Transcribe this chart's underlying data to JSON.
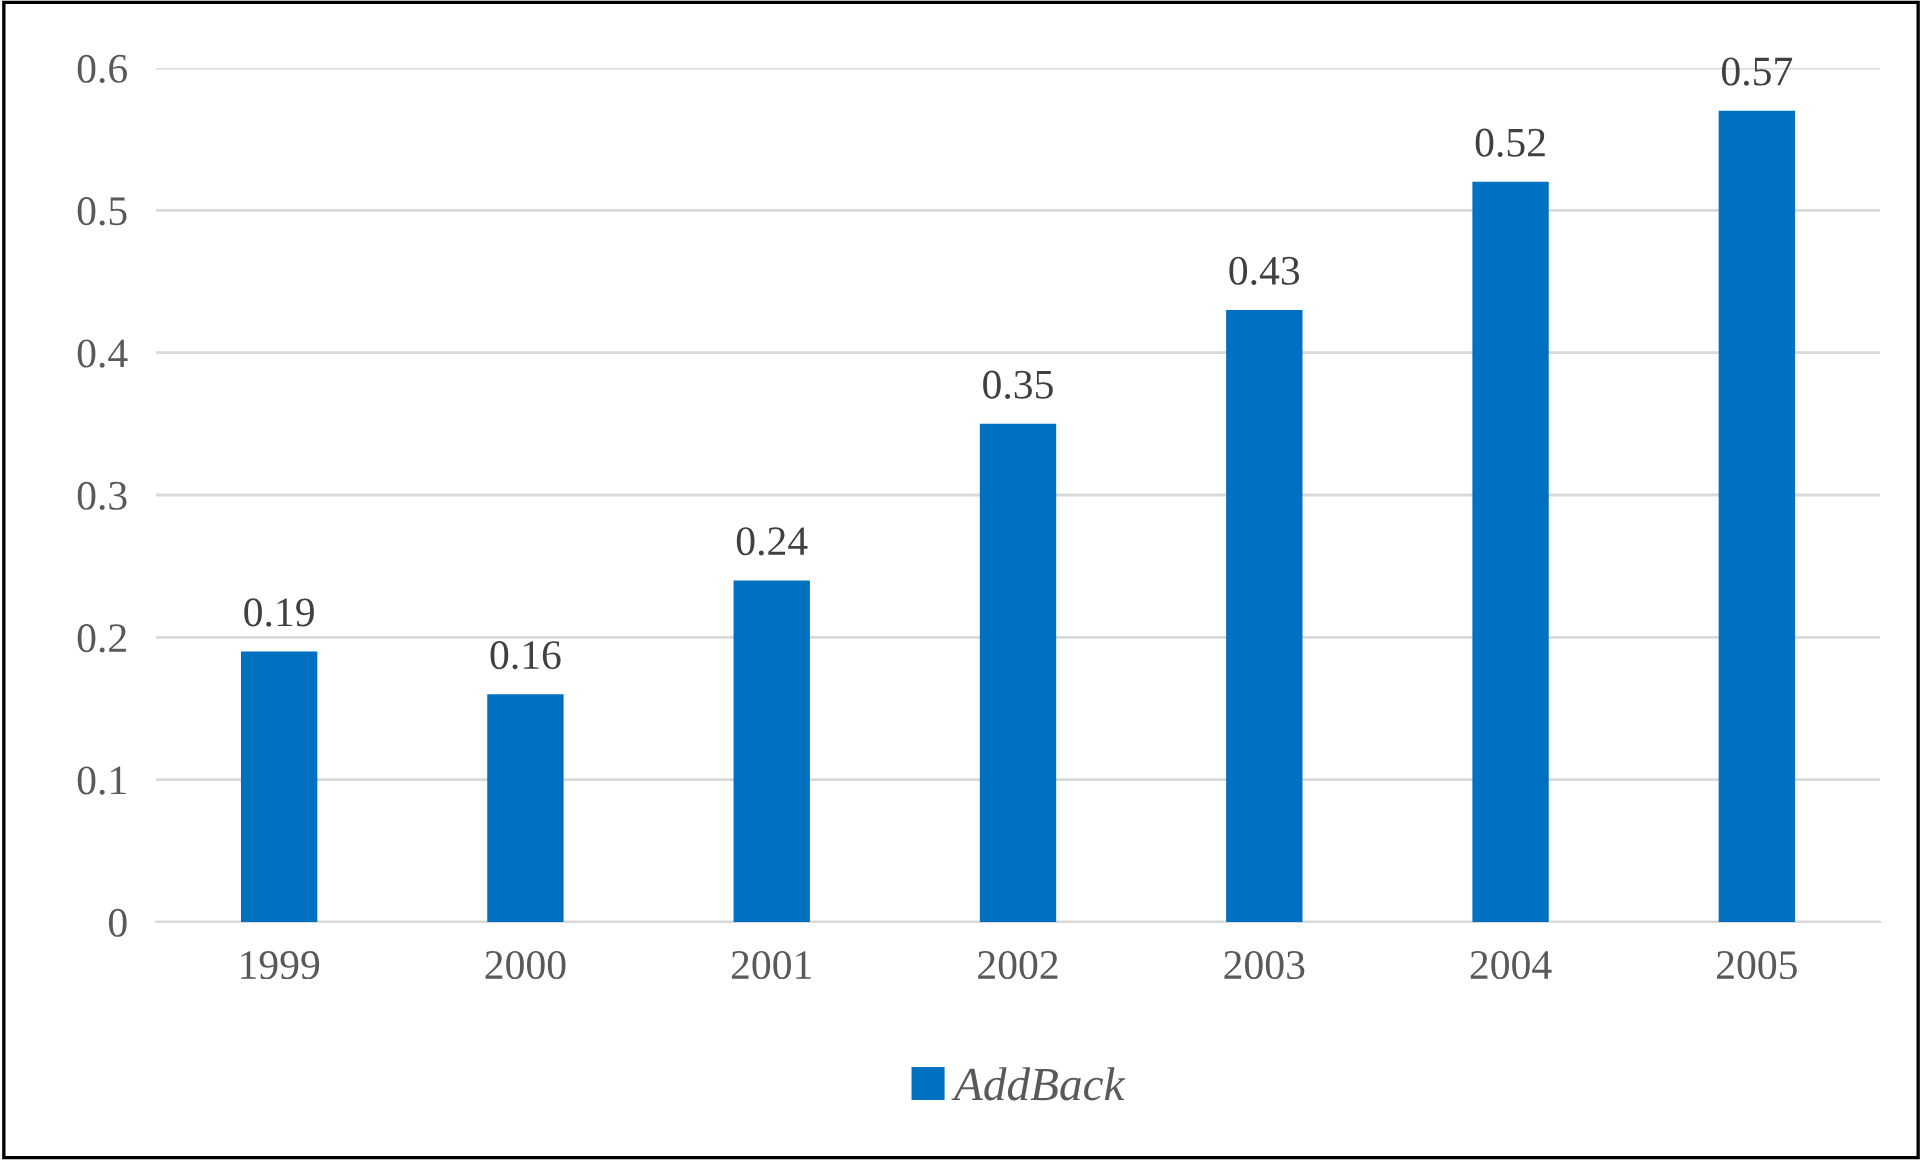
{
  "chart_data": {
    "type": "bar",
    "categories": [
      "1999",
      "2000",
      "2001",
      "2002",
      "2003",
      "2004",
      "2005"
    ],
    "series": [
      {
        "name": "AddBack",
        "color": "#0070c0",
        "values": [
          0.19,
          0.16,
          0.24,
          0.35,
          0.43,
          0.52,
          0.57
        ]
      }
    ],
    "ylim": [
      0,
      0.6
    ],
    "yticks": [
      0,
      0.1,
      0.2,
      0.3,
      0.4,
      0.5,
      0.6
    ],
    "grid": "y",
    "legend": "bottom",
    "data_labels": true
  }
}
